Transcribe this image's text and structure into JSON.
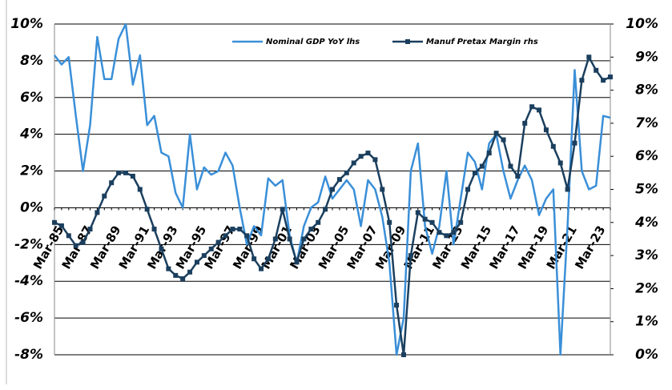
{
  "chart_data": {
    "type": "line",
    "categories": [
      "Mar-85",
      null,
      null,
      null,
      "Mar-87",
      null,
      null,
      null,
      "Mar-89",
      null,
      null,
      null,
      "Mar-91",
      null,
      null,
      null,
      "Mar-93",
      null,
      null,
      null,
      "Mar-95",
      null,
      null,
      null,
      "Mar-97",
      null,
      null,
      null,
      "Mar-99",
      null,
      null,
      null,
      "Mar-01",
      null,
      null,
      null,
      "Mar-03",
      null,
      null,
      null,
      "Mar-05",
      null,
      null,
      null,
      "Mar-07",
      null,
      null,
      null,
      "Mar-09",
      null,
      null,
      null,
      "Mar-11",
      null,
      null,
      null,
      "Mar-13",
      null,
      null,
      null,
      "Mar-15",
      null,
      null,
      null,
      "Mar-17",
      null,
      null,
      null,
      "Mar-19",
      null,
      null,
      null,
      "Mar-21",
      null,
      null,
      null,
      "Mar-23",
      null,
      null
    ],
    "series": [
      {
        "name": "Nominal GDP YoY lhs",
        "color": "#3a8fd8",
        "axis": "y",
        "values": [
          8.3,
          7.8,
          8.2,
          5.0,
          2.0,
          4.5,
          9.3,
          7.0,
          7.0,
          9.2,
          10,
          6.7,
          8.3,
          4.5,
          5.0,
          3.0,
          2.8,
          0.8,
          0,
          4.0,
          1.0,
          2.2,
          1.8,
          2.0,
          3.0,
          2.3,
          0,
          -2.0,
          -1.0,
          -1.5,
          1.6,
          1.2,
          1.5,
          -1.5,
          -3.0,
          -1.0,
          0,
          0.3,
          1.7,
          0.5,
          1.0,
          1.5,
          1.0,
          -1.0,
          1.5,
          1.0,
          -0.5,
          -3.0,
          -8,
          -6,
          2.0,
          3.5,
          -1.0,
          -2.5,
          -1.0,
          2.0,
          -2.0,
          0.5,
          3.0,
          2.5,
          1.0,
          3.5,
          4.0,
          2.0,
          0.5,
          1.5,
          2.3,
          1.5,
          -0.4,
          0.5,
          1.0,
          -8,
          -1.0,
          7.5,
          2.0,
          1.0,
          1.2,
          5.0,
          4.9
        ]
      },
      {
        "name": "Manuf Pretax Margin rhs",
        "color": "#1b3f5e",
        "axis": "y2",
        "marker": "square",
        "values": [
          4.0,
          3.9,
          3.6,
          3.3,
          3.4,
          3.8,
          4.3,
          4.8,
          5.2,
          5.5,
          5.5,
          5.4,
          5.0,
          4.4,
          3.8,
          3.2,
          2.6,
          2.4,
          2.3,
          2.5,
          2.8,
          3.0,
          3.2,
          3.4,
          3.6,
          3.8,
          3.8,
          3.6,
          2.9,
          2.6,
          2.9,
          3.5,
          4.4,
          3.5,
          2.8,
          3.5,
          3.8,
          4.0,
          4.4,
          5.0,
          5.3,
          5.5,
          5.8,
          6.0,
          6.1,
          5.9,
          5.0,
          4.0,
          1.5,
          0.0,
          3.0,
          4.3,
          4.1,
          4.0,
          3.7,
          3.6,
          3.7,
          4.0,
          5.0,
          5.5,
          5.7,
          6.1,
          6.7,
          6.5,
          5.7,
          5.4,
          7.0,
          7.5,
          7.4,
          6.8,
          6.3,
          5.8,
          5.0,
          6.4,
          8.3,
          9.0,
          8.6,
          8.3,
          8.4
        ]
      }
    ],
    "ylim": [
      -8,
      10
    ],
    "yticks": [
      {
        "value": -8,
        "label": "-8%"
      },
      {
        "value": -6,
        "label": "-6%"
      },
      {
        "value": -4,
        "label": "-4%"
      },
      {
        "value": -2,
        "label": "-2%"
      },
      {
        "value": 0,
        "label": "0%"
      },
      {
        "value": 2,
        "label": "2%"
      },
      {
        "value": 4,
        "label": "4%"
      },
      {
        "value": 6,
        "label": "6%"
      },
      {
        "value": 8,
        "label": "8%"
      },
      {
        "value": 10,
        "label": "10%"
      }
    ],
    "y2lim": [
      0,
      10
    ],
    "y2ticks": [
      {
        "value": 0,
        "label": "0%"
      },
      {
        "value": 1,
        "label": "1%"
      },
      {
        "value": 2,
        "label": "2%"
      },
      {
        "value": 3,
        "label": "3%"
      },
      {
        "value": 4,
        "label": "4%"
      },
      {
        "value": 5,
        "label": "5%"
      },
      {
        "value": 6,
        "label": "6%"
      },
      {
        "value": 7,
        "label": "7%"
      },
      {
        "value": 8,
        "label": "8%"
      },
      {
        "value": 9,
        "label": "9%"
      },
      {
        "value": 10,
        "label": "10%"
      }
    ],
    "grid": true,
    "legend": "top"
  }
}
